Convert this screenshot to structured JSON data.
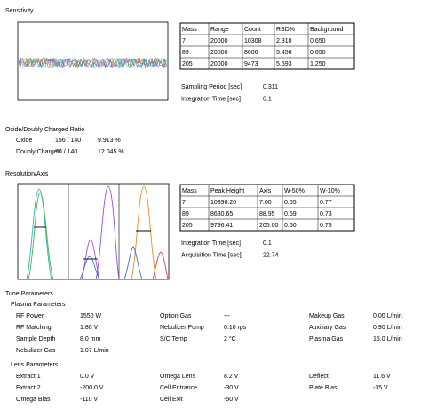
{
  "sensitivity": {
    "title": "Sensitivity",
    "table": {
      "header": [
        "Mass",
        "Range",
        "Count",
        "RSD%",
        "Background"
      ],
      "rows": [
        [
          "7",
          "20000",
          "10308",
          "2.310",
          "0.650"
        ],
        [
          "89",
          "20000",
          "8606",
          "5.456",
          "0.650"
        ],
        [
          "205",
          "20000",
          "9473",
          "5.593",
          "1.250"
        ]
      ]
    },
    "params": [
      [
        "Sampling Period [sec]",
        "0.311"
      ],
      [
        "Integration Time [sec]",
        "0.1"
      ]
    ]
  },
  "oxide": {
    "title": "Oxide/Doubly Charged Ratio",
    "rows": [
      [
        "Oxide",
        "156 / 140",
        "9.913 %"
      ],
      [
        "Doubly Charged",
        "70 / 140",
        "12.045 %"
      ]
    ]
  },
  "resolution": {
    "title": "Resolution/Axis",
    "table": {
      "header": [
        "Mass",
        "Peak Height",
        "Axis",
        "W-50%",
        "W-10%"
      ],
      "rows": [
        [
          "7",
          "10398.20",
          "7.00",
          "0.65",
          "0.77"
        ],
        [
          "89",
          "8630.65",
          "88.95",
          "0.59",
          "0.73"
        ],
        [
          "205",
          "9796.41",
          "205.00",
          "0.60",
          "0.75"
        ]
      ]
    },
    "params": [
      [
        "Integration Time [sec]",
        "0.1"
      ],
      [
        "Acquisition Time [sec]",
        "22.74"
      ]
    ]
  },
  "tune": {
    "title": "Tune Parameters",
    "plasma": {
      "title": "Plasma Parameters",
      "rows": [
        [
          "RF Power",
          "1550 W",
          "Option Gas",
          "---",
          "Makeup Gas",
          "0.00 L/min"
        ],
        [
          "RF Matching",
          "1.80 V",
          "Nebulizer Pump",
          "0.10 rps",
          "Auxiliary Gas",
          "0.90 L/min"
        ],
        [
          "Sample Depth",
          "8.0 mm",
          "S/C Temp",
          "2 °C",
          "Plasma Gas",
          "15.0 L/min"
        ],
        [
          "Nebulizer Gas",
          "1.07 L/min"
        ]
      ]
    },
    "lens": {
      "title": "Lens Parameters",
      "rows": [
        [
          "Extract 1",
          "0.0 V",
          "Omega Lens",
          "8.2 V",
          "Deflect",
          "11.6 V"
        ],
        [
          "Extract 2",
          "-200.0 V",
          "Cell Entrance",
          "-30 V",
          "Plate Bias",
          "-35 V"
        ],
        [
          "Omega Bias",
          "-110 V",
          "Cell Exit",
          "-50 V"
        ]
      ]
    }
  }
}
